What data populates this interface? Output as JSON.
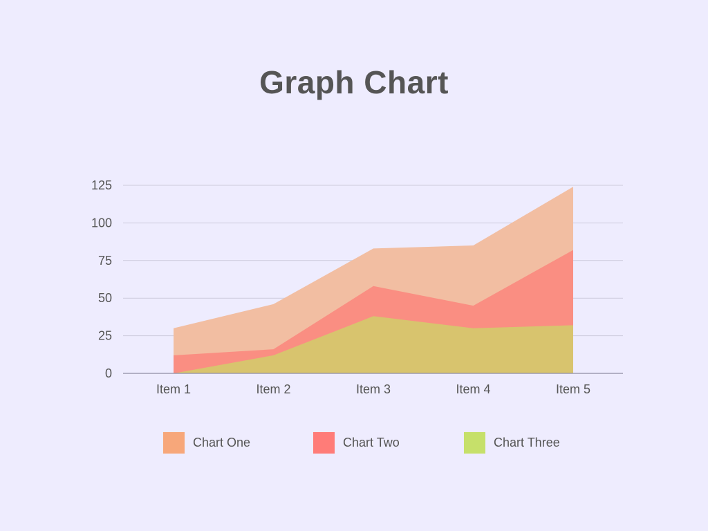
{
  "title": "Graph Chart",
  "chart_data": {
    "type": "area",
    "title": "Graph Chart",
    "xlabel": "",
    "ylabel": "",
    "categories": [
      "Item 1",
      "Item 2",
      "Item 3",
      "Item 4",
      "Item 5"
    ],
    "ylim": [
      0,
      125
    ],
    "yticks": [
      0,
      25,
      50,
      75,
      100,
      125
    ],
    "grid": true,
    "legend_position": "bottom",
    "series": [
      {
        "name": "Chart One",
        "values": [
          30,
          46,
          83,
          85,
          124
        ],
        "color": "#F7A77A"
      },
      {
        "name": "Chart Two",
        "values": [
          12,
          16,
          58,
          45,
          82
        ],
        "color": "#FF7C78"
      },
      {
        "name": "Chart Three",
        "values": [
          0,
          12,
          38,
          30,
          32
        ],
        "color": "#C6E06A"
      }
    ],
    "rendered_colors": [
      "#F2BEA2",
      "#FA8E82",
      "#D8C46E"
    ]
  }
}
